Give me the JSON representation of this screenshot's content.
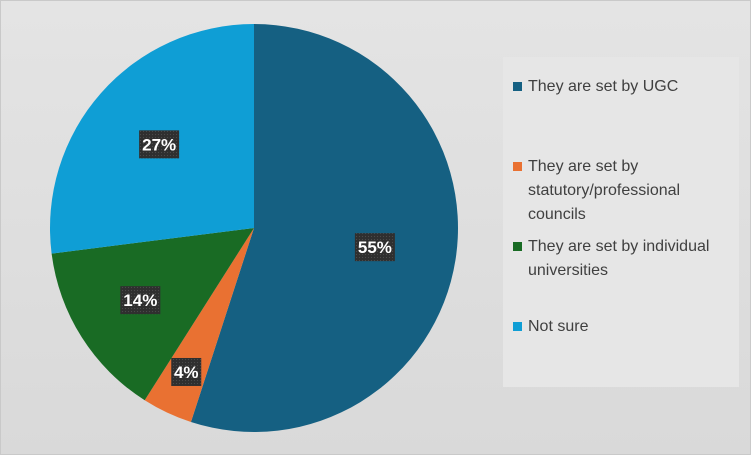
{
  "chart_data": {
    "type": "pie",
    "categories": [
      "They are set by UGC",
      "They are set by statutory/professional councils",
      "They are set by individual universities",
      "Not sure"
    ],
    "values": [
      55,
      4,
      14,
      27
    ],
    "data_labels": [
      "55%",
      "4%",
      "14%",
      "27%"
    ],
    "colors": [
      "#156082",
      "#e97132",
      "#196b24",
      "#0f9ed5"
    ],
    "legend_position": "right",
    "start_angle_deg": 0,
    "direction": "clockwise"
  },
  "legend": {
    "items": [
      {
        "label": "They are set by UGC",
        "color": "#156082"
      },
      {
        "label": "They are set by statutory/professional councils",
        "color": "#e97132"
      },
      {
        "label": "They are set by individual universities",
        "color": "#196b24"
      },
      {
        "label": "Not sure",
        "color": "#0f9ed5"
      }
    ]
  }
}
